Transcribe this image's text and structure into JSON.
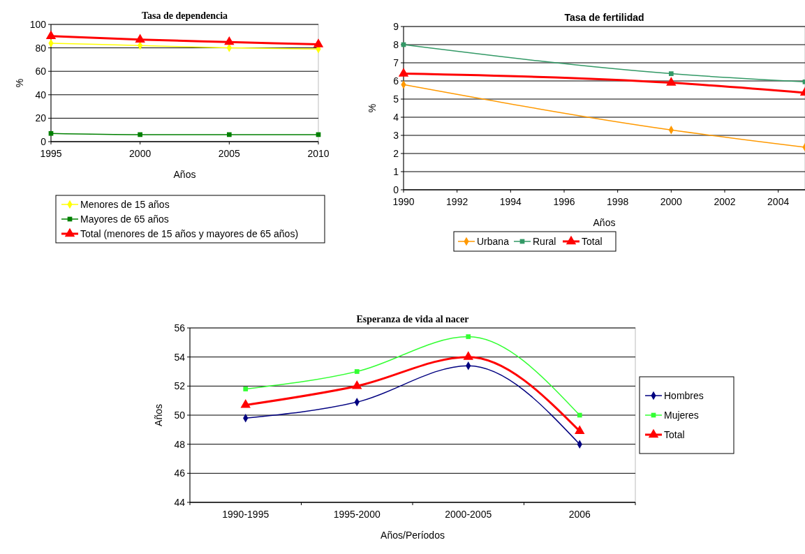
{
  "chart_data": [
    {
      "type": "line",
      "title": "Tasa de dependencia",
      "xlabel": "Años",
      "ylabel": "%",
      "x": [
        1995,
        2000,
        2005,
        2010
      ],
      "xlim": [
        1995,
        2010
      ],
      "xticks": [
        1995,
        2000,
        2005,
        2010
      ],
      "ylim": [
        0,
        100
      ],
      "yticks": [
        0,
        20,
        40,
        60,
        80,
        100
      ],
      "grid": "y",
      "legend": "bottom",
      "series": [
        {
          "name": "Menores de 15 años",
          "color": "#ffff00",
          "marker": "diamond",
          "values": [
            84,
            82,
            80,
            79
          ]
        },
        {
          "name": "Mayores de 65 años",
          "color": "#008000",
          "marker": "square",
          "values": [
            7,
            6,
            6,
            6
          ]
        },
        {
          "name": "Total (menores de 15 años y mayores de 65 años)",
          "color": "#ff0000",
          "marker": "triangle",
          "values": [
            90,
            87,
            85,
            83
          ]
        }
      ]
    },
    {
      "type": "line",
      "title": "Tasa de fertilidad",
      "xlabel": "Años",
      "ylabel": "%",
      "x": [
        1990,
        2000,
        2005
      ],
      "xlim": [
        1990,
        2005
      ],
      "xticks": [
        1990,
        1992,
        1994,
        1996,
        1998,
        2000,
        2002,
        2004
      ],
      "ylim": [
        0,
        9
      ],
      "yticks": [
        0,
        1,
        2,
        3,
        4,
        5,
        6,
        7,
        8,
        9
      ],
      "grid": "y",
      "legend": "bottom",
      "series": [
        {
          "name": "Urbana",
          "color": "#ff9900",
          "marker": "diamond",
          "values": [
            5.8,
            3.3,
            2.35
          ]
        },
        {
          "name": "Rural",
          "color": "#339966",
          "marker": "square",
          "values": [
            8.0,
            6.4,
            5.95
          ]
        },
        {
          "name": "Total",
          "color": "#ff0000",
          "marker": "triangle",
          "values": [
            6.4,
            5.9,
            5.35
          ]
        }
      ]
    },
    {
      "type": "line",
      "title": "Esperanza de vida al nacer",
      "xlabel": "Años/Períodos",
      "ylabel": "Años",
      "categories": [
        "1990-1995",
        "1995-2000",
        "2000-2005",
        "2006"
      ],
      "ylim": [
        44,
        56
      ],
      "yticks": [
        44,
        46,
        48,
        50,
        52,
        54,
        56
      ],
      "grid": "y",
      "legend": "right",
      "series": [
        {
          "name": "Hombres",
          "color": "#000080",
          "marker": "diamond",
          "values": [
            49.8,
            50.9,
            53.4,
            48.0
          ]
        },
        {
          "name": "Mujeres",
          "color": "#33ff33",
          "marker": "square",
          "values": [
            51.8,
            53.0,
            55.4,
            50.0
          ]
        },
        {
          "name": "Total",
          "color": "#ff0000",
          "marker": "triangle",
          "values": [
            50.7,
            52.0,
            54.0,
            48.9
          ]
        }
      ]
    }
  ]
}
